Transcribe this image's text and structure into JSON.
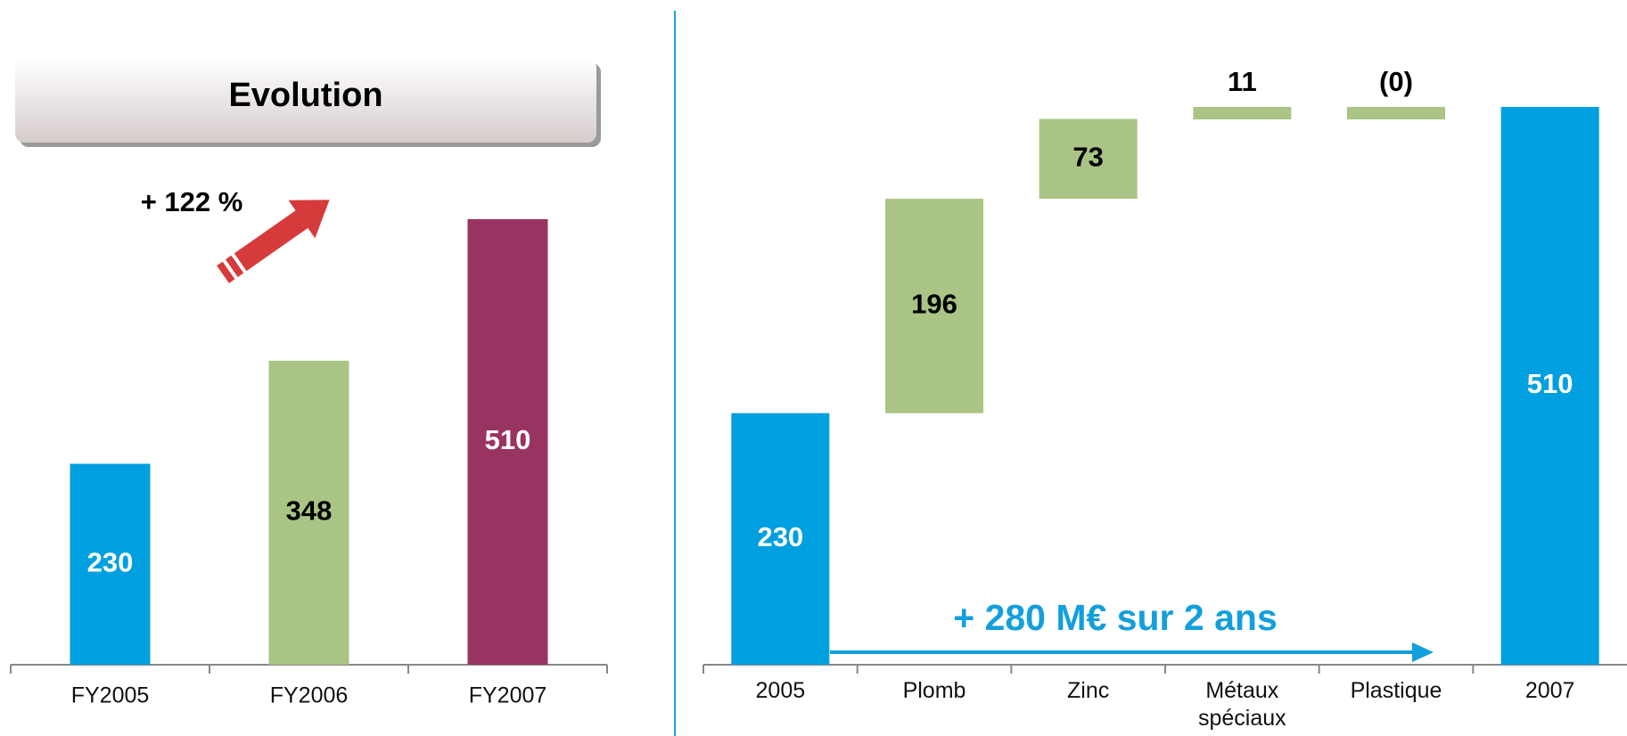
{
  "chart_data": [
    {
      "type": "bar",
      "title": "Evolution",
      "annotation": "+ 122 %",
      "categories": [
        "FY2005",
        "FY2006",
        "FY2007"
      ],
      "values": [
        230,
        348,
        510
      ],
      "colors": [
        "#009fe0",
        "#a9c484",
        "#993462"
      ]
    },
    {
      "type": "waterfall",
      "annotation": "+ 280 M€ sur 2 ans",
      "categories": [
        "2005",
        "Plomb",
        "Zinc",
        "Métaux spéciaux",
        "Plastique",
        "2007"
      ],
      "values": [
        230,
        196,
        73,
        11,
        0,
        510
      ],
      "value_labels": [
        "230",
        "196",
        "73",
        "11",
        "(0)",
        "510"
      ],
      "colors": [
        "#009fe0",
        "#a9c484",
        "#a9c484",
        "#a9c484",
        "#a9c484",
        "#009fe0"
      ]
    }
  ]
}
